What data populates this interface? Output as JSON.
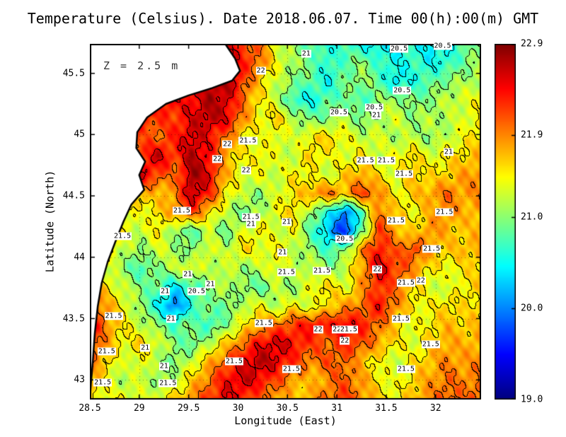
{
  "chart_data": {
    "type": "heatmap",
    "title": "Temperature (Celsius). Date 2018.06.07. Time 00(h):00(m) GMT",
    "xlabel": "Longitude (East)",
    "ylabel": "Latitude (North)",
    "annotation": "Z = 2.5 m",
    "xlim": [
      28.5,
      32.46
    ],
    "ylim": [
      42.84,
      45.74
    ],
    "xticks": [
      28.5,
      29,
      29.5,
      30,
      30.5,
      31,
      31.5,
      32
    ],
    "xtick_labels": [
      "28.5",
      "29",
      "29.5",
      "30",
      "30.5",
      "31",
      "31.5",
      "32"
    ],
    "yticks": [
      43,
      43.5,
      44,
      44.5,
      45,
      45.5
    ],
    "ytick_labels": [
      "43",
      "43.5",
      "44",
      "44.5",
      "45",
      "45.5"
    ],
    "colorbar": {
      "min": 19.0,
      "max": 22.9,
      "tick_values": [
        22.9,
        21.9,
        21.0,
        20.0,
        19.0
      ],
      "tick_labels": [
        "22.9",
        "21.9",
        "21.0",
        "20.0",
        "19.0"
      ]
    },
    "contour_interval": 0.5,
    "grid": {
      "nrows": 20,
      "ncols": 24,
      "values": [
        [
          22.5,
          22.5,
          22.5,
          22.5,
          22.5,
          22.5,
          22.5,
          22.6,
          22.5,
          22.2,
          22.0,
          21.3,
          21.0,
          20.8,
          20.6,
          20.7,
          20.5,
          20.4,
          20.5,
          20.6,
          20.4,
          20.5,
          20.8,
          21.0
        ],
        [
          22.5,
          22.5,
          22.5,
          22.5,
          22.5,
          22.5,
          22.5,
          22.6,
          22.7,
          22.3,
          22.0,
          21.4,
          21.1,
          20.9,
          20.6,
          20.8,
          21.0,
          20.7,
          20.5,
          20.7,
          20.5,
          20.6,
          20.9,
          21.1
        ],
        [
          22.5,
          22.5,
          22.5,
          22.5,
          22.5,
          22.5,
          22.5,
          22.6,
          22.8,
          22.2,
          21.6,
          21.2,
          21.0,
          20.8,
          20.5,
          20.9,
          21.1,
          20.8,
          20.4,
          20.6,
          20.8,
          21.0,
          21.1,
          21.2
        ],
        [
          22.5,
          22.5,
          22.5,
          22.5,
          22.5,
          22.4,
          22.4,
          22.7,
          22.6,
          22.0,
          21.5,
          21.2,
          20.6,
          20.5,
          20.8,
          20.9,
          20.7,
          21.0,
          21.1,
          20.9,
          21.0,
          21.2,
          21.3,
          21.4
        ],
        [
          22.4,
          22.4,
          22.4,
          22.3,
          22.2,
          22.2,
          22.5,
          22.7,
          22.5,
          21.9,
          21.4,
          21.6,
          21.2,
          20.9,
          21.0,
          21.2,
          20.9,
          21.1,
          21.3,
          21.0,
          21.2,
          21.1,
          21.3,
          21.5
        ],
        [
          22.3,
          22.3,
          22.3,
          22.1,
          22.0,
          22.3,
          22.6,
          22.4,
          22.0,
          21.5,
          21.3,
          21.4,
          21.2,
          21.5,
          21.6,
          21.4,
          21.2,
          21.3,
          21.1,
          21.2,
          21.0,
          21.2,
          21.4,
          21.6
        ],
        [
          22.2,
          22.2,
          22.2,
          22.3,
          22.6,
          22.2,
          22.7,
          22.4,
          21.8,
          21.4,
          21.5,
          21.3,
          21.2,
          21.6,
          21.4,
          21.3,
          21.5,
          21.2,
          21.4,
          21.6,
          21.3,
          21.5,
          21.6,
          21.7
        ],
        [
          22.1,
          22.1,
          22.2,
          22.5,
          22.2,
          21.9,
          22.8,
          22.5,
          21.7,
          21.3,
          21.4,
          21.2,
          21.5,
          21.4,
          21.2,
          21.6,
          21.8,
          21.5,
          21.3,
          21.7,
          21.5,
          21.6,
          21.8,
          21.9
        ],
        [
          22.0,
          22.0,
          22.0,
          21.8,
          21.6,
          21.9,
          22.7,
          22.3,
          21.5,
          21.2,
          21.0,
          21.3,
          21.5,
          21.8,
          22.0,
          21.7,
          22.2,
          21.9,
          21.4,
          21.6,
          21.8,
          22.0,
          21.8,
          21.9
        ],
        [
          21.9,
          21.8,
          21.5,
          21.3,
          21.6,
          21.8,
          22.2,
          21.6,
          21.2,
          20.9,
          21.1,
          21.4,
          21.6,
          21.0,
          20.6,
          19.9,
          20.8,
          22.0,
          21.6,
          21.4,
          21.7,
          21.9,
          21.7,
          21.8
        ],
        [
          22.0,
          21.7,
          21.4,
          21.2,
          21.5,
          21.0,
          20.8,
          21.2,
          20.9,
          21.3,
          21.5,
          21.2,
          21.4,
          20.8,
          20.2,
          19.6,
          20.9,
          22.2,
          21.8,
          21.5,
          21.9,
          21.7,
          21.6,
          21.7
        ],
        [
          21.8,
          21.5,
          21.2,
          21.0,
          21.3,
          21.1,
          20.9,
          21.4,
          21.1,
          21.6,
          21.3,
          21.5,
          21.2,
          21.0,
          20.7,
          21.0,
          21.9,
          22.4,
          22.0,
          22.2,
          21.8,
          21.6,
          21.7,
          21.8
        ],
        [
          21.6,
          21.3,
          21.0,
          20.7,
          21.0,
          21.2,
          21.4,
          21.1,
          21.3,
          21.0,
          21.2,
          21.4,
          21.1,
          21.3,
          21.0,
          21.2,
          21.8,
          22.6,
          22.2,
          21.9,
          21.5,
          21.4,
          21.5,
          21.6
        ],
        [
          21.9,
          21.5,
          21.2,
          21.0,
          20.8,
          20.4,
          20.7,
          21.0,
          21.2,
          21.0,
          20.8,
          21.2,
          21.0,
          21.4,
          21.6,
          21.3,
          21.8,
          22.3,
          22.0,
          21.6,
          21.3,
          21.2,
          21.5,
          21.6
        ],
        [
          22.2,
          21.8,
          21.4,
          21.0,
          20.5,
          19.9,
          20.6,
          21.0,
          20.8,
          21.2,
          21.4,
          21.1,
          21.5,
          21.2,
          21.6,
          21.8,
          22.0,
          22.4,
          21.9,
          21.5,
          21.4,
          21.6,
          21.5,
          21.6
        ],
        [
          22.5,
          21.9,
          21.5,
          21.2,
          21.0,
          20.7,
          21.0,
          20.6,
          21.0,
          21.4,
          21.8,
          22.0,
          22.2,
          22.4,
          22.3,
          22.5,
          22.3,
          22.0,
          21.6,
          21.3,
          21.5,
          21.7,
          21.6,
          21.7
        ],
        [
          22.3,
          21.8,
          21.4,
          21.6,
          21.3,
          21.0,
          20.8,
          21.2,
          21.6,
          22.0,
          22.4,
          22.6,
          22.4,
          22.2,
          22.0,
          22.3,
          22.1,
          21.8,
          21.5,
          21.3,
          21.6,
          21.8,
          21.7,
          21.8
        ],
        [
          22.0,
          21.6,
          21.2,
          21.4,
          21.1,
          20.9,
          21.3,
          21.7,
          22.1,
          22.5,
          22.7,
          22.5,
          22.2,
          21.9,
          22.1,
          22.0,
          21.7,
          21.4,
          21.2,
          21.5,
          21.7,
          21.9,
          21.8,
          21.9
        ],
        [
          21.8,
          21.4,
          21.1,
          21.3,
          21.0,
          21.2,
          21.6,
          22.0,
          22.4,
          22.6,
          22.4,
          22.1,
          21.8,
          21.6,
          21.9,
          22.1,
          21.8,
          21.5,
          21.3,
          21.6,
          21.8,
          22.0,
          21.9,
          22.0
        ],
        [
          21.6,
          21.3,
          21.5,
          21.2,
          21.4,
          21.6,
          21.9,
          22.2,
          22.5,
          22.3,
          22.0,
          21.8,
          21.6,
          21.8,
          22.0,
          22.2,
          21.9,
          21.6,
          21.4,
          21.7,
          21.9,
          22.1,
          22.0,
          22.1
        ]
      ]
    },
    "coastline": [
      [
        29.87,
        45.74
      ],
      [
        29.97,
        45.62
      ],
      [
        30.02,
        45.52
      ],
      [
        29.94,
        45.44
      ],
      [
        29.74,
        45.38
      ],
      [
        29.5,
        45.32
      ],
      [
        29.27,
        45.25
      ],
      [
        29.08,
        45.14
      ],
      [
        28.98,
        45.02
      ],
      [
        28.97,
        44.89
      ],
      [
        29.06,
        44.78
      ],
      [
        29.0,
        44.67
      ],
      [
        29.05,
        44.55
      ],
      [
        28.92,
        44.43
      ],
      [
        28.84,
        44.29
      ],
      [
        28.76,
        44.13
      ],
      [
        28.68,
        43.96
      ],
      [
        28.62,
        43.79
      ],
      [
        28.58,
        43.6
      ],
      [
        28.55,
        43.38
      ],
      [
        28.53,
        43.15
      ],
      [
        28.51,
        42.96
      ],
      [
        28.5,
        42.84
      ]
    ],
    "contour_labels": [
      {
        "lon": 30.69,
        "lat": 45.66,
        "label": "21"
      },
      {
        "lon": 31.63,
        "lat": 45.7,
        "label": "20.5"
      },
      {
        "lon": 32.07,
        "lat": 45.72,
        "label": "20.5"
      },
      {
        "lon": 30.23,
        "lat": 45.52,
        "label": "22"
      },
      {
        "lon": 31.66,
        "lat": 45.36,
        "label": "20.5"
      },
      {
        "lon": 31.02,
        "lat": 45.18,
        "label": "20.5"
      },
      {
        "lon": 31.38,
        "lat": 45.22,
        "label": "20.5"
      },
      {
        "lon": 31.4,
        "lat": 45.16,
        "label": "21"
      },
      {
        "lon": 29.89,
        "lat": 44.92,
        "label": "22"
      },
      {
        "lon": 30.1,
        "lat": 44.95,
        "label": "21.5"
      },
      {
        "lon": 32.13,
        "lat": 44.86,
        "label": "21"
      },
      {
        "lon": 29.79,
        "lat": 44.8,
        "label": "22"
      },
      {
        "lon": 30.08,
        "lat": 44.71,
        "label": "22"
      },
      {
        "lon": 31.29,
        "lat": 44.79,
        "label": "21.5"
      },
      {
        "lon": 31.5,
        "lat": 44.79,
        "label": "21.5"
      },
      {
        "lon": 31.68,
        "lat": 44.68,
        "label": "21.5"
      },
      {
        "lon": 29.43,
        "lat": 44.38,
        "label": "21.5"
      },
      {
        "lon": 30.13,
        "lat": 44.33,
        "label": "21.5"
      },
      {
        "lon": 30.13,
        "lat": 44.27,
        "label": "21"
      },
      {
        "lon": 30.49,
        "lat": 44.29,
        "label": "21"
      },
      {
        "lon": 31.6,
        "lat": 44.3,
        "label": "21.5"
      },
      {
        "lon": 32.09,
        "lat": 44.37,
        "label": "21.5"
      },
      {
        "lon": 28.83,
        "lat": 44.17,
        "label": "21.5"
      },
      {
        "lon": 31.08,
        "lat": 44.15,
        "label": "20.5"
      },
      {
        "lon": 31.96,
        "lat": 44.07,
        "label": "21.5"
      },
      {
        "lon": 30.45,
        "lat": 44.04,
        "label": "21"
      },
      {
        "lon": 30.49,
        "lat": 43.88,
        "label": "21.5"
      },
      {
        "lon": 30.85,
        "lat": 43.89,
        "label": "21.5"
      },
      {
        "lon": 31.41,
        "lat": 43.9,
        "label": "22"
      },
      {
        "lon": 31.7,
        "lat": 43.79,
        "label": "21.5"
      },
      {
        "lon": 31.85,
        "lat": 43.81,
        "label": "22"
      },
      {
        "lon": 29.49,
        "lat": 43.86,
        "label": "21"
      },
      {
        "lon": 29.72,
        "lat": 43.78,
        "label": "21"
      },
      {
        "lon": 29.58,
        "lat": 43.72,
        "label": "20.5"
      },
      {
        "lon": 29.26,
        "lat": 43.72,
        "label": "21"
      },
      {
        "lon": 28.74,
        "lat": 43.52,
        "label": "21.5"
      },
      {
        "lon": 29.32,
        "lat": 43.5,
        "label": "21"
      },
      {
        "lon": 30.26,
        "lat": 43.46,
        "label": "21.5"
      },
      {
        "lon": 30.81,
        "lat": 43.41,
        "label": "22"
      },
      {
        "lon": 31.0,
        "lat": 43.41,
        "label": "22"
      },
      {
        "lon": 31.12,
        "lat": 43.41,
        "label": "21.5"
      },
      {
        "lon": 31.08,
        "lat": 43.32,
        "label": "22"
      },
      {
        "lon": 31.65,
        "lat": 43.5,
        "label": "21.5"
      },
      {
        "lon": 31.95,
        "lat": 43.29,
        "label": "21.5"
      },
      {
        "lon": 29.96,
        "lat": 43.15,
        "label": "21.5"
      },
      {
        "lon": 30.54,
        "lat": 43.09,
        "label": "21.5"
      },
      {
        "lon": 31.7,
        "lat": 43.09,
        "label": "21.5"
      },
      {
        "lon": 29.06,
        "lat": 43.26,
        "label": "21"
      },
      {
        "lon": 28.67,
        "lat": 43.23,
        "label": "21.5"
      },
      {
        "lon": 28.63,
        "lat": 42.98,
        "label": "21.5"
      },
      {
        "lon": 29.25,
        "lat": 43.11,
        "label": "21"
      },
      {
        "lon": 29.29,
        "lat": 42.97,
        "label": "21.5"
      }
    ]
  }
}
